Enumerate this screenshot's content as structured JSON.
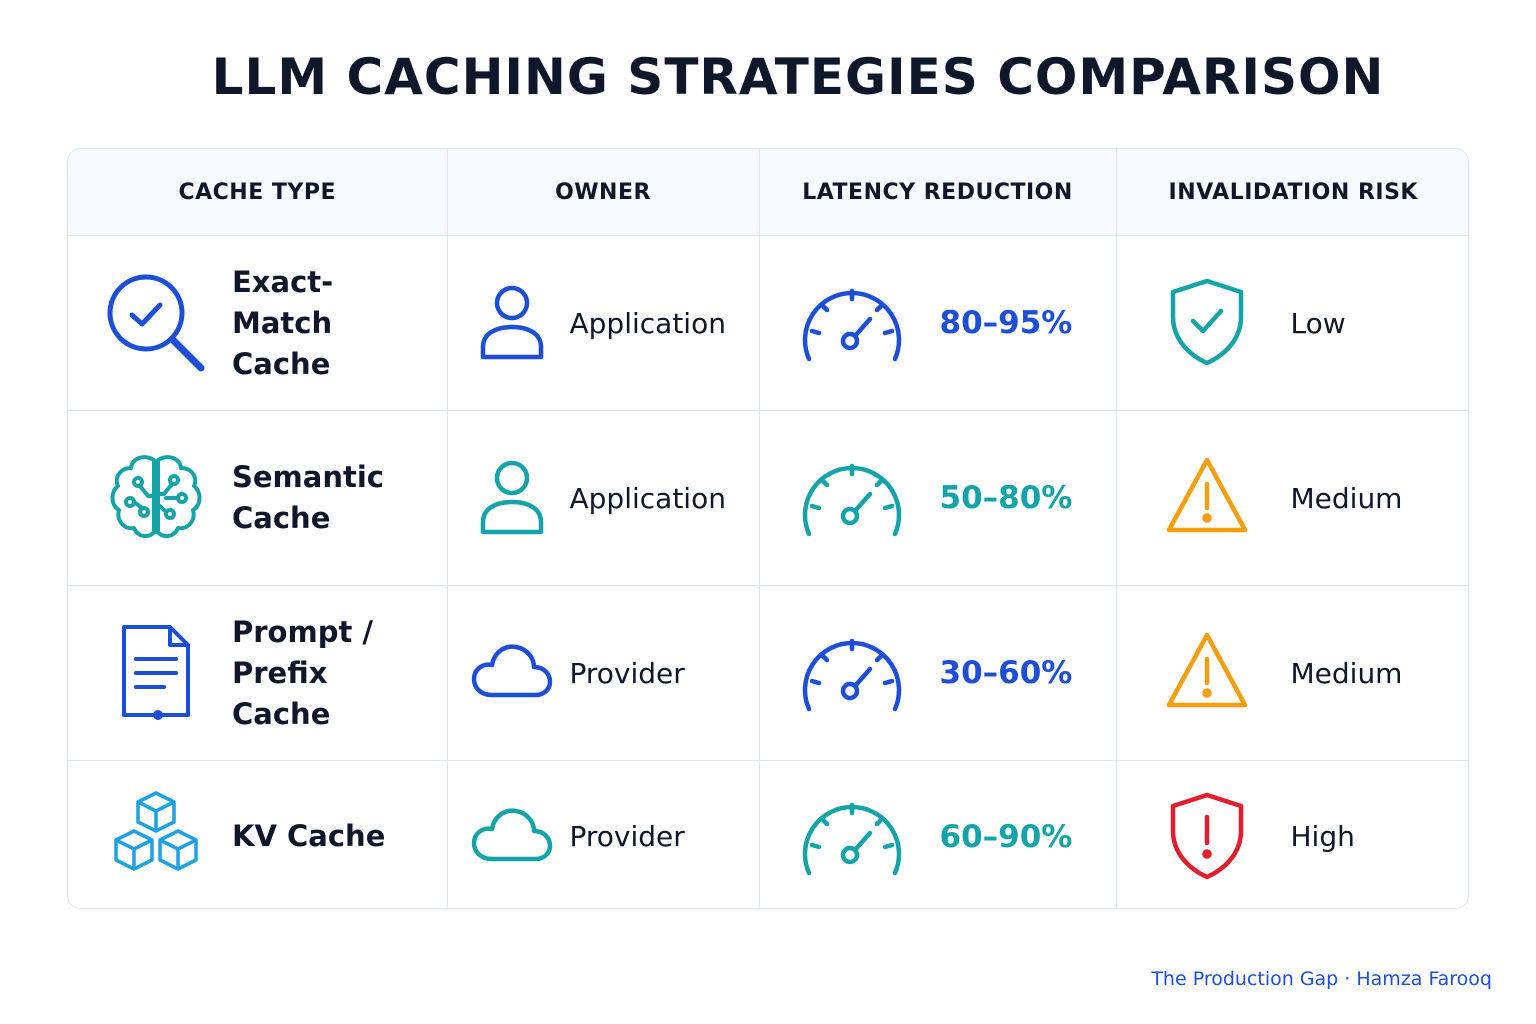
{
  "title": "LLM CACHING STRATEGIES COMPARISON",
  "credit": "The Production Gap · Hamza Farooq",
  "colors": {
    "blue": "#1d4ed8",
    "teal": "#14a3a8",
    "orange": "#f59e0b",
    "red": "#e11d2e",
    "header_bg": "#f6f9fd",
    "border": "#dfe5ee"
  },
  "chart_data": {
    "type": "table",
    "columns": [
      "CACHE TYPE",
      "OWNER",
      "LATENCY REDUCTION",
      "INVALIDATION RISK"
    ],
    "rows": [
      {
        "cache_type": "Exact-Match Cache",
        "type_icon": "magnifier-check-icon",
        "owner": "Application",
        "owner_icon": "user-icon",
        "latency": "80–95%",
        "latency_icon": "gauge-icon",
        "risk": "Low",
        "risk_icon": "shield-check-icon"
      },
      {
        "cache_type": "Semantic Cache",
        "type_icon": "brain-icon",
        "owner": "Application",
        "owner_icon": "user-icon",
        "latency": "50–80%",
        "latency_icon": "gauge-icon",
        "risk": "Medium",
        "risk_icon": "warning-triangle-icon"
      },
      {
        "cache_type": "Prompt / Prefix Cache",
        "type_icon": "document-icon",
        "owner": "Provider",
        "owner_icon": "cloud-icon",
        "latency": "30–60%",
        "latency_icon": "gauge-icon",
        "risk": "Medium",
        "risk_icon": "warning-triangle-icon"
      },
      {
        "cache_type": "KV Cache",
        "type_icon": "cubes-icon",
        "owner": "Provider",
        "owner_icon": "cloud-icon",
        "latency": "60–90%",
        "latency_icon": "gauge-icon",
        "risk": "High",
        "risk_icon": "shield-alert-icon"
      }
    ]
  }
}
